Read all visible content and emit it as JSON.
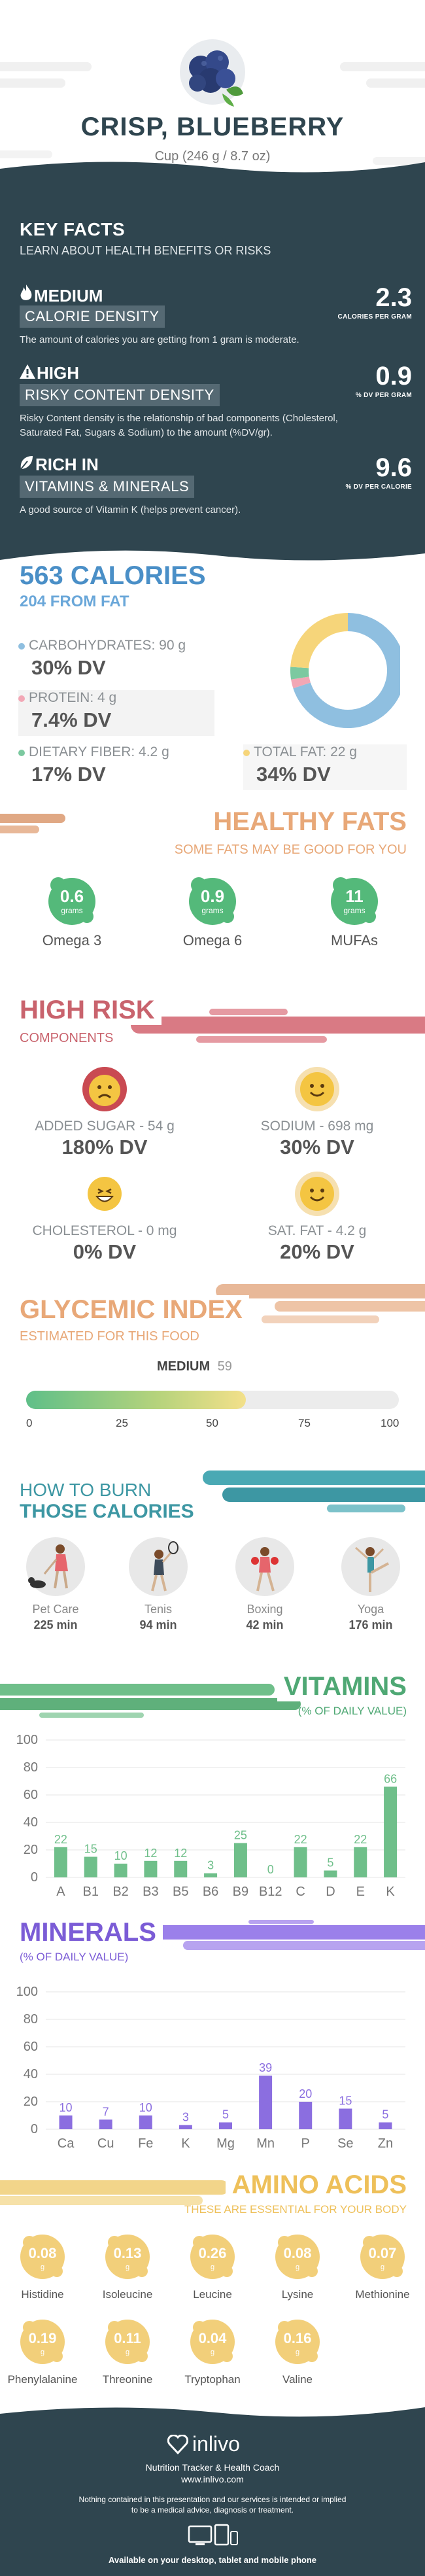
{
  "header": {
    "title": "CRISP, BLUEBERRY",
    "serving": "Cup (246 g / 8.7 oz)"
  },
  "key_facts": {
    "title": "KEY FACTS",
    "subtitle": "LEARN ABOUT HEALTH BENEFITS OR RISKS",
    "items": [
      {
        "level": "MEDIUM",
        "label": "CALORIE DENSITY",
        "value": "2.3",
        "unit": "CALORIES PER GRAM",
        "desc": "The amount of calories you are getting from 1 gram is moderate.",
        "icon": "flame-icon"
      },
      {
        "level": "HIGH",
        "label": "RISKY CONTENT DENSITY",
        "value": "0.9",
        "unit": "% DV PER GRAM",
        "desc": "Risky Content density is the relationship of bad components (Cholesterol, Saturated Fat, Sugars & Sodium) to the amount (%DV/gr).",
        "icon": "warning-icon"
      },
      {
        "level": "RICH  IN",
        "label": "VITAMINS & MINERALS",
        "value": "9.6",
        "unit": "% DV PER CALORIE",
        "desc": "A good source of Vitamin K (helps prevent cancer).",
        "icon": "leaf-icon"
      }
    ]
  },
  "calories": {
    "title": "563 CALORIES",
    "subtitle": "204 FROM FAT",
    "carbs_label": "CARBOHYDRATES: 90 g",
    "carbs_dv": "30% DV",
    "protein_label": "PROTEIN: 4 g",
    "protein_dv": "7.4% DV",
    "fiber_label": "DIETARY FIBER: 4.2 g",
    "fiber_dv": "17% DV",
    "fat_label": "TOTAL FAT: 22 g",
    "fat_dv": "34% DV",
    "colors": {
      "carbs": "#8fbfe0",
      "protein": "#f2a7b5",
      "fiber": "#7cc9a0",
      "fat": "#f6d57a"
    },
    "donut_fractions": {
      "carbs": 0.7,
      "protein": 0.025,
      "fiber": 0.035,
      "fat": 0.24
    }
  },
  "healthy_fats": {
    "title": "HEALTHY FATS",
    "subtitle": "SOME FATS MAY BE GOOD FOR YOU",
    "items": [
      {
        "value": "0.6",
        "unit": "grams",
        "name": "Omega 3"
      },
      {
        "value": "0.9",
        "unit": "grams",
        "name": "Omega 6"
      },
      {
        "value": "11",
        "unit": "grams",
        "name": "MUFAs"
      }
    ]
  },
  "high_risk": {
    "title": "HIGH RISK",
    "subtitle": "COMPONENTS",
    "items": [
      {
        "label": "ADDED SUGAR - 54 g",
        "dv": "180% DV",
        "face": "sad-face-icon"
      },
      {
        "label": "SODIUM - 698 mg",
        "dv": "30% DV",
        "face": "smile-face-icon"
      },
      {
        "label": "CHOLESTEROL - 0 mg",
        "dv": "0% DV",
        "face": "grin-face-icon"
      },
      {
        "label": "SAT. FAT - 4.2 g",
        "dv": "20% DV",
        "face": "smile-face-icon"
      }
    ]
  },
  "glycemic": {
    "title": "GLYCEMIC INDEX",
    "subtitle": "ESTIMATED FOR THIS FOOD",
    "level": "MEDIUM",
    "value": "59",
    "value_num": 59,
    "ticks": [
      "0",
      "25",
      "50",
      "75",
      "100"
    ]
  },
  "burn": {
    "title_1": "HOW TO BURN",
    "title_2": "THOSE CALORIES",
    "items": [
      {
        "name": "Pet Care",
        "min": "225 min",
        "icon": "dog-walking-icon"
      },
      {
        "name": "Tenis",
        "min": "94 min",
        "icon": "tennis-icon"
      },
      {
        "name": "Boxing",
        "min": "42 min",
        "icon": "boxing-icon"
      },
      {
        "name": "Yoga",
        "min": "176 min",
        "icon": "yoga-icon"
      }
    ]
  },
  "vitamins": {
    "title": "VITAMINS",
    "subtitle": "(% OF DAILY VALUE)",
    "color": "#6fbf8a",
    "chart_data": {
      "type": "bar",
      "categories": [
        "A",
        "B1",
        "B2",
        "B3",
        "B5",
        "B6",
        "B9",
        "B12",
        "C",
        "D",
        "E",
        "K"
      ],
      "values": [
        22,
        15,
        10,
        12,
        12,
        3,
        25,
        0,
        22,
        5,
        22,
        66
      ],
      "labels": [
        "22",
        "15",
        "10",
        "12",
        "12",
        "3",
        "25",
        "0",
        "22",
        "5",
        "22",
        "66"
      ],
      "ylim": [
        0,
        100
      ],
      "yticks": [
        "0",
        "20",
        "40",
        "60",
        "80",
        "100"
      ]
    }
  },
  "minerals": {
    "title": "MINERALS",
    "subtitle": "(% OF DAILY VALUE)",
    "color": "#8b6ee0",
    "chart_data": {
      "type": "bar",
      "categories": [
        "Ca",
        "Cu",
        "Fe",
        "K",
        "Mg",
        "Mn",
        "P",
        "Se",
        "Zn"
      ],
      "values": [
        10,
        7,
        10,
        3,
        5,
        39,
        20,
        15,
        5
      ],
      "labels": [
        "10",
        "7",
        "10",
        "3",
        "5",
        "39",
        "20",
        "15",
        "5"
      ],
      "ylim": [
        0,
        100
      ],
      "yticks": [
        "0",
        "20",
        "40",
        "60",
        "80",
        "100"
      ]
    }
  },
  "amino": {
    "title": "AMINO ACIDS",
    "subtitle": "THESE ARE ESSENTIAL FOR YOUR BODY",
    "unit": "g",
    "items": [
      {
        "value": "0.08",
        "name": "Histidine"
      },
      {
        "value": "0.13",
        "name": "Isoleucine"
      },
      {
        "value": "0.26",
        "name": "Leucine"
      },
      {
        "value": "0.08",
        "name": "Lysine"
      },
      {
        "value": "0.07",
        "name": "Methionine"
      },
      {
        "value": "0.19",
        "name": "Phenylalanine"
      },
      {
        "value": "0.11",
        "name": "Threonine"
      },
      {
        "value": "0.04",
        "name": "Tryptophan"
      },
      {
        "value": "0.16",
        "name": "Valine"
      }
    ]
  },
  "footer": {
    "brand": "inlivo",
    "tagline": "Nutrition Tracker & Health Coach",
    "url": "www.inlivo.com",
    "disclaimer_1": "Nothing contained in this presentation and our services is intended or implied",
    "disclaimer_2": "to be a medical advice, diagnosis or treatment.",
    "available": "Available on your desktop, tablet and mobile phone"
  }
}
